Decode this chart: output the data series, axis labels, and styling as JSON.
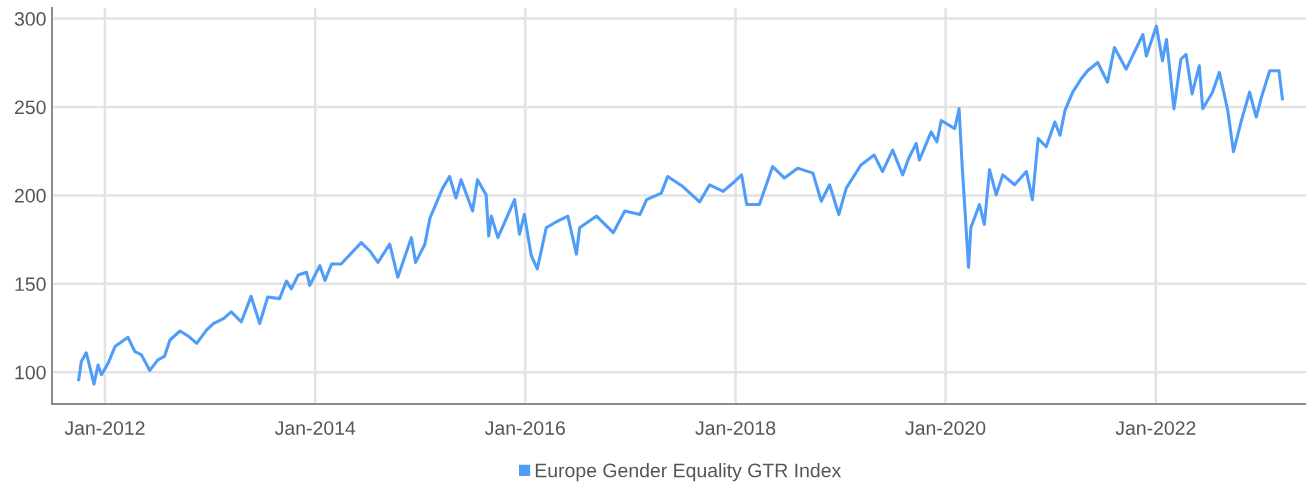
{
  "chart_data": {
    "type": "line",
    "legend": "bottom",
    "grid": true,
    "marker": "none",
    "line_style": "solid",
    "xlim": [
      "2011-07-01",
      "2023-06-07"
    ],
    "ylim": [
      82,
      306
    ],
    "yticks": [
      100,
      150,
      200,
      250,
      300
    ],
    "xticks": [
      {
        "value": "2012-01-01",
        "label": "Jan-2012"
      },
      {
        "value": "2014-01-01",
        "label": "Jan-2014"
      },
      {
        "value": "2016-01-01",
        "label": "Jan-2016"
      },
      {
        "value": "2018-01-01",
        "label": "Jan-2018"
      },
      {
        "value": "2020-01-01",
        "label": "Jan-2020"
      },
      {
        "value": "2022-01-01",
        "label": "Jan-2022"
      }
    ],
    "x": [
      "2011-10-02",
      "2011-10-11",
      "2011-10-28",
      "2011-11-09",
      "2011-11-24",
      "2011-12-08",
      "2011-12-20",
      "2012-01-12",
      "2012-02-05",
      "2012-03-21",
      "2012-04-14",
      "2012-05-07",
      "2012-06-05",
      "2012-07-03",
      "2012-07-26",
      "2012-08-14",
      "2012-09-18",
      "2012-10-16",
      "2012-11-15",
      "2012-12-19",
      "2013-01-12",
      "2013-02-16",
      "2013-03-15",
      "2013-04-19",
      "2013-05-23",
      "2013-06-22",
      "2013-07-20",
      "2013-08-30",
      "2013-09-23",
      "2013-10-10",
      "2013-11-03",
      "2013-12-02",
      "2013-12-13",
      "2014-01-17",
      "2014-02-04",
      "2014-02-27",
      "2014-04-01",
      "2014-06-10",
      "2014-07-09",
      "2014-08-07",
      "2014-09-17",
      "2014-10-15",
      "2014-12-01",
      "2014-12-16",
      "2015-01-17",
      "2015-02-04",
      "2015-03-20",
      "2015-04-13",
      "2015-05-05",
      "2015-05-23",
      "2015-07-02",
      "2015-07-19",
      "2015-08-18",
      "2015-08-27",
      "2015-09-05",
      "2015-09-28",
      "2015-11-25",
      "2015-12-12",
      "2015-12-29",
      "2016-01-22",
      "2016-02-12",
      "2016-03-14",
      "2016-04-23",
      "2016-05-28",
      "2016-06-27",
      "2016-07-08",
      "2016-09-05",
      "2016-11-02",
      "2016-12-12",
      "2017-02-03",
      "2017-02-26",
      "2017-04-18",
      "2017-05-10",
      "2017-07-02",
      "2017-08-29",
      "2017-10-03",
      "2017-11-19",
      "2017-12-23",
      "2018-01-22",
      "2018-02-09",
      "2018-03-25",
      "2018-05-10",
      "2018-06-20",
      "2018-08-05",
      "2018-09-27",
      "2018-10-26",
      "2018-11-24",
      "2018-12-26",
      "2019-01-21",
      "2019-03-13",
      "2019-04-28",
      "2019-05-27",
      "2019-07-01",
      "2019-08-05",
      "2019-08-26",
      "2019-09-21",
      "2019-10-02",
      "2019-11-12",
      "2019-12-02",
      "2019-12-17",
      "2020-02-02",
      "2020-02-17",
      "2020-02-28",
      "2020-03-21",
      "2020-03-29",
      "2020-04-28",
      "2020-05-15",
      "2020-06-02",
      "2020-06-25",
      "2020-07-18",
      "2020-08-28",
      "2020-10-08",
      "2020-10-29",
      "2020-11-18",
      "2020-12-16",
      "2021-01-15",
      "2021-02-02",
      "2021-02-19",
      "2021-03-18",
      "2021-04-16",
      "2021-05-09",
      "2021-06-13",
      "2021-07-17",
      "2021-08-10",
      "2021-09-20",
      "2021-11-17",
      "2021-11-29",
      "2022-01-03",
      "2022-01-24",
      "2022-02-07",
      "2022-03-05",
      "2022-03-29",
      "2022-04-16",
      "2022-05-07",
      "2022-06-01",
      "2022-06-13",
      "2022-07-17",
      "2022-08-10",
      "2022-09-08",
      "2022-09-28",
      "2022-10-24",
      "2022-11-23",
      "2022-12-16",
      "2023-01-03",
      "2023-02-01",
      "2023-03-05",
      "2023-03-17"
    ],
    "series": [
      {
        "name": "Europe Gender Equality GTR Index",
        "color": "#4f9cf9",
        "values": [
          95.8,
          106,
          111,
          103.3,
          93.3,
          104,
          98.6,
          105,
          114.5,
          119.7,
          111.7,
          109.8,
          101,
          107,
          108.9,
          118.2,
          123.3,
          120.5,
          116.3,
          123.8,
          127.5,
          130.3,
          134.1,
          128.5,
          142.9,
          127.5,
          142.5,
          141.6,
          151.5,
          147.1,
          155,
          156.5,
          149.1,
          160.3,
          151.9,
          161.2,
          161.2,
          173.3,
          168.7,
          162.1,
          172.4,
          153.7,
          176.1,
          162.1,
          172.4,
          187.3,
          204.1,
          210.7,
          198.5,
          208.9,
          191.2,
          208.9,
          200.4,
          177,
          188.3,
          176.1,
          197.6,
          178,
          189.2,
          165.9,
          158.4,
          181.7,
          185.5,
          188.3,
          166.8,
          181.7,
          188.3,
          178.9,
          191.2,
          189.2,
          197.6,
          201.3,
          210.7,
          205,
          196.3,
          206,
          202.3,
          207,
          211.6,
          194.8,
          194.8,
          216.3,
          209.8,
          215.4,
          212.6,
          196.7,
          206,
          189.2,
          204.1,
          217.2,
          222.8,
          213.5,
          225.6,
          211.6,
          221,
          229.4,
          220,
          235.9,
          230.3,
          242.4,
          237.8,
          249,
          216.3,
          159.3,
          181.7,
          194.8,
          183.6,
          214.5,
          200.4,
          211.6,
          206,
          213.5,
          197.6,
          232.2,
          227.5,
          241.5,
          234,
          248,
          258.4,
          265.8,
          270.5,
          275.2,
          264,
          283.6,
          271.4,
          291,
          278.9,
          295.7,
          276.1,
          288.2,
          249,
          277,
          279.8,
          257.4,
          273.3,
          249,
          258.4,
          269.6,
          248,
          224.7,
          241.5,
          258.4,
          244.3,
          255.5,
          270.5,
          270.5,
          254.6
        ]
      }
    ]
  }
}
